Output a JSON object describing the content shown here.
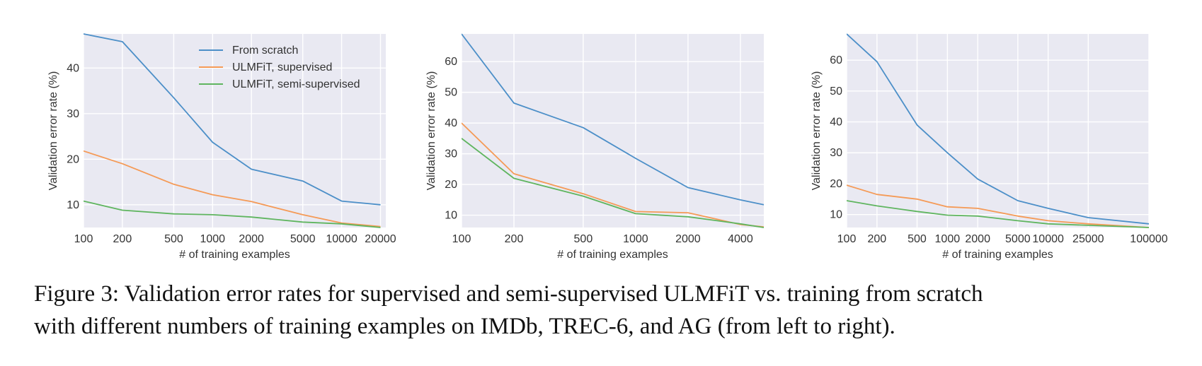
{
  "colors": {
    "from_scratch": "#4c8fc8",
    "ulmfit_supervised": "#f59a56",
    "ulmfit_semi_supervised": "#5fb55f",
    "plot_bg": "#e9e9f2",
    "grid": "#ffffff"
  },
  "legend": [
    "From scratch",
    "ULMFiT, supervised",
    "ULMFiT, semi-supervised"
  ],
  "caption": {
    "line1": "Figure 3: Validation error rates for supervised and semi-supervised ULMFiT vs. training from scratch",
    "line2": "with different numbers of training examples on IMDb, TREC-6, and AG (from left to right)."
  },
  "chart_data": [
    {
      "type": "line",
      "xscale": "log",
      "xlabel": "# of training examples",
      "ylabel": "Validation error rate (%)",
      "xlim": [
        100,
        22000
      ],
      "ylim": [
        5,
        47.5
      ],
      "xticks": [
        100,
        200,
        500,
        1000,
        2000,
        5000,
        10000,
        20000
      ],
      "xtick_labels": [
        "100",
        "200",
        "500",
        "1000",
        "2000",
        "5000",
        "10000",
        "20000"
      ],
      "yticks": [
        10,
        20,
        30,
        40
      ],
      "legend_loc": "top-center",
      "x": [
        100,
        200,
        500,
        1000,
        2000,
        5000,
        10000,
        20000
      ],
      "series": [
        {
          "name": "From scratch",
          "values": [
            47.5,
            45.8,
            33.5,
            23.7,
            17.8,
            15.2,
            10.8,
            10.0
          ]
        },
        {
          "name": "ULMFiT, supervised",
          "values": [
            21.8,
            19.0,
            14.5,
            12.2,
            10.7,
            7.8,
            6.0,
            5.2
          ]
        },
        {
          "name": "ULMFiT, semi-supervised",
          "values": [
            10.8,
            8.8,
            8.0,
            7.8,
            7.3,
            6.2,
            5.8,
            5.0
          ]
        }
      ]
    },
    {
      "type": "line",
      "xscale": "log",
      "xlabel": "# of training examples",
      "ylabel": "Validation error rate (%)",
      "xlim": [
        100,
        5452
      ],
      "ylim": [
        6,
        69
      ],
      "xticks": [
        100,
        200,
        500,
        1000,
        2000,
        4000
      ],
      "xtick_labels": [
        "100",
        "200",
        "500",
        "1000",
        "2000",
        "4000"
      ],
      "yticks": [
        10,
        20,
        30,
        40,
        50,
        60
      ],
      "x": [
        100,
        200,
        500,
        1000,
        2000,
        4000,
        5452
      ],
      "series": [
        {
          "name": "From scratch",
          "values": [
            69.0,
            46.5,
            38.5,
            28.5,
            19.0,
            15.0,
            13.4
          ]
        },
        {
          "name": "ULMFiT, supervised",
          "values": [
            40.0,
            23.5,
            17.0,
            11.2,
            10.8,
            7.0,
            6.2
          ]
        },
        {
          "name": "ULMFiT, semi-supervised",
          "values": [
            35.0,
            22.0,
            16.2,
            10.5,
            9.5,
            7.2,
            6.0
          ]
        }
      ]
    },
    {
      "type": "line",
      "xscale": "log",
      "xlabel": "# of training examples",
      "ylabel": "Validation error rate (%)",
      "xlim": [
        100,
        100000
      ],
      "ylim": [
        5.8,
        68.5
      ],
      "xticks": [
        100,
        200,
        500,
        1000,
        2000,
        5000,
        10000,
        25000,
        100000
      ],
      "xtick_labels": [
        "100",
        "200",
        "500",
        "1000",
        "2000",
        "5000",
        "10000",
        "25000",
        "100000"
      ],
      "yticks": [
        10,
        20,
        30,
        40,
        50,
        60
      ],
      "x": [
        100,
        200,
        500,
        1000,
        2000,
        5000,
        10000,
        25000,
        100000
      ],
      "series": [
        {
          "name": "From scratch",
          "values": [
            68.5,
            59.5,
            39.0,
            30.0,
            21.5,
            14.5,
            12.0,
            9.0,
            7.0
          ]
        },
        {
          "name": "ULMFiT, supervised",
          "values": [
            19.5,
            16.5,
            15.0,
            12.5,
            12.0,
            9.5,
            8.0,
            7.0,
            5.8
          ]
        },
        {
          "name": "ULMFiT, semi-supervised",
          "values": [
            14.5,
            12.8,
            11.0,
            9.8,
            9.5,
            8.0,
            7.0,
            6.5,
            5.8
          ]
        }
      ]
    }
  ]
}
